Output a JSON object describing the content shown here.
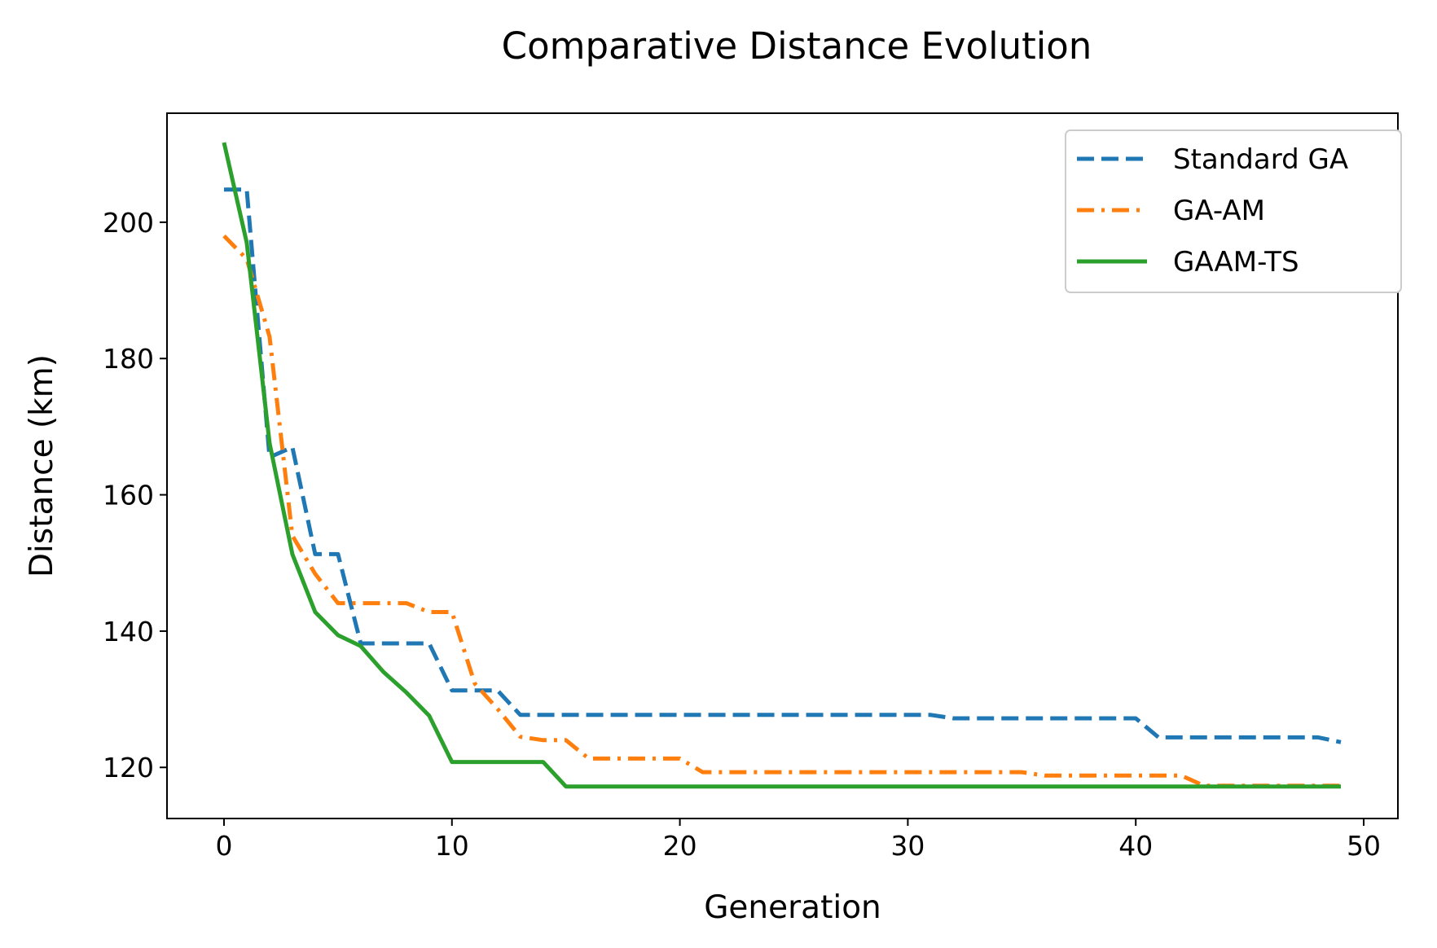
{
  "chart_data": {
    "type": "line",
    "title": "Comparative Distance Evolution",
    "xlabel": "Generation",
    "ylabel": "Distance (km)",
    "xlim": [
      -2.5,
      51.5
    ],
    "ylim": [
      112.5,
      216
    ],
    "xticks": [
      0,
      10,
      20,
      30,
      40,
      50
    ],
    "yticks": [
      120,
      140,
      160,
      180,
      200
    ],
    "grid": false,
    "legend_position": "top-right",
    "x": [
      0,
      1,
      2,
      3,
      4,
      5,
      6,
      7,
      8,
      9,
      10,
      11,
      12,
      13,
      14,
      15,
      16,
      17,
      18,
      19,
      20,
      21,
      22,
      23,
      24,
      25,
      26,
      27,
      28,
      29,
      30,
      31,
      32,
      33,
      34,
      35,
      36,
      37,
      38,
      39,
      40,
      41,
      42,
      43,
      44,
      45,
      46,
      47,
      48,
      49
    ],
    "series": [
      {
        "name": "Standard GA",
        "color": "#1f77b4",
        "dash": "dashed",
        "values": [
          204.8,
          204.8,
          165.5,
          167.0,
          151.3,
          151.3,
          138.2,
          138.2,
          138.2,
          138.2,
          131.3,
          131.3,
          131.3,
          127.7,
          127.7,
          127.7,
          127.7,
          127.7,
          127.7,
          127.7,
          127.7,
          127.7,
          127.7,
          127.7,
          127.7,
          127.7,
          127.7,
          127.7,
          127.7,
          127.7,
          127.7,
          127.7,
          127.2,
          127.2,
          127.2,
          127.2,
          127.2,
          127.2,
          127.2,
          127.2,
          127.2,
          124.4,
          124.4,
          124.4,
          124.4,
          124.4,
          124.4,
          124.4,
          124.4,
          123.7
        ]
      },
      {
        "name": "GA-AM",
        "color": "#ff7f0e",
        "dash": "dashdot",
        "values": [
          198.0,
          194.6,
          183.2,
          154.0,
          148.4,
          144.1,
          144.1,
          144.1,
          144.1,
          142.8,
          142.8,
          132.3,
          128.6,
          124.5,
          124.0,
          124.0,
          121.3,
          121.3,
          121.3,
          121.3,
          121.3,
          119.3,
          119.3,
          119.3,
          119.3,
          119.3,
          119.3,
          119.3,
          119.3,
          119.3,
          119.3,
          119.3,
          119.3,
          119.3,
          119.3,
          119.3,
          118.8,
          118.8,
          118.8,
          118.8,
          118.8,
          118.8,
          118.8,
          117.3,
          117.3,
          117.3,
          117.3,
          117.3,
          117.3,
          117.3
        ]
      },
      {
        "name": "GAAM-TS",
        "color": "#2ca02c",
        "dash": "solid",
        "values": [
          211.7,
          197.0,
          167.6,
          151.3,
          142.8,
          139.4,
          137.8,
          134.0,
          131.0,
          127.6,
          120.8,
          120.8,
          120.8,
          120.8,
          120.8,
          117.2,
          117.2,
          117.2,
          117.2,
          117.2,
          117.2,
          117.2,
          117.2,
          117.2,
          117.2,
          117.2,
          117.2,
          117.2,
          117.2,
          117.2,
          117.2,
          117.2,
          117.2,
          117.2,
          117.2,
          117.2,
          117.2,
          117.2,
          117.2,
          117.2,
          117.2,
          117.2,
          117.2,
          117.2,
          117.2,
          117.2,
          117.2,
          117.2,
          117.2,
          117.2
        ]
      }
    ]
  }
}
